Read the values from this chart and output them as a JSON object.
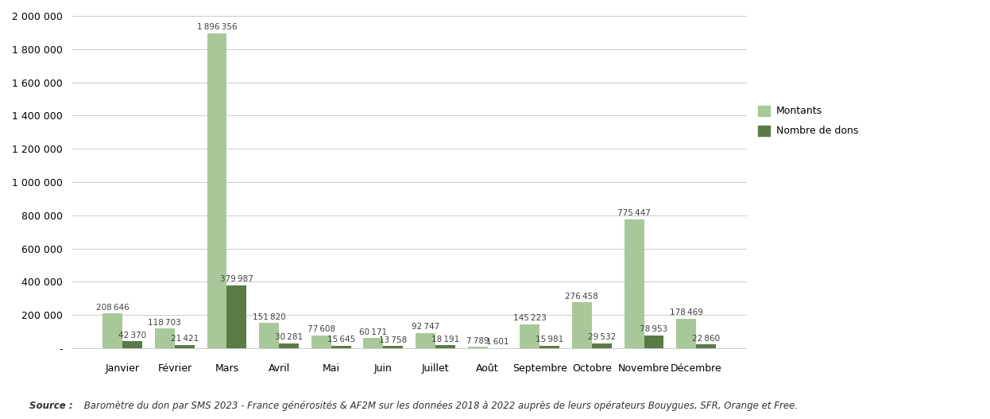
{
  "categories": [
    "Janvier",
    "Février",
    "Mars",
    "Avril",
    "Mai",
    "Juin",
    "Juillet",
    "Août",
    "Septembre",
    "Octobre",
    "Novembre",
    "Décembre"
  ],
  "montants": [
    208646,
    118703,
    1896356,
    151820,
    77608,
    60171,
    92747,
    7789,
    145223,
    276458,
    775447,
    178469
  ],
  "nombre_de_dons": [
    42370,
    21421,
    379987,
    30281,
    15645,
    13758,
    18191,
    1601,
    15981,
    29532,
    78953,
    22860
  ],
  "color_montants": "#a8c89a",
  "color_dons": "#5a7a46",
  "bar_width": 0.38,
  "ylim_min": -40000,
  "ylim_max": 2000000,
  "yticks": [
    0,
    200000,
    400000,
    600000,
    800000,
    1000000,
    1200000,
    1400000,
    1600000,
    1800000,
    2000000
  ],
  "legend_labels": [
    "Montants",
    "Nombre de dons"
  ],
  "source_bold": "Source :",
  "source_rest": " Baromètre du don par SMS 2023 - France générosités & AF2M sur les données 2018 à 2022 auprès de leurs opérateurs Bouygues, SFR, Orange et Free.",
  "background_color": "#ffffff",
  "grid_color": "#cccccc",
  "label_fontsize": 7.5,
  "axis_tick_fontsize": 9,
  "legend_fontsize": 9,
  "source_fontsize": 8.5,
  "text_color": "#404040"
}
